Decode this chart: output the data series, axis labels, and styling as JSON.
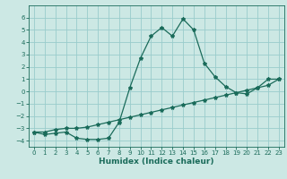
{
  "xlabel": "Humidex (Indice chaleur)",
  "bg_color": "#cce8e4",
  "grid_color": "#99cccc",
  "line_color": "#1a6b5a",
  "xlim": [
    -0.5,
    23.5
  ],
  "ylim": [
    -4.5,
    7.0
  ],
  "yticks": [
    -4,
    -3,
    -2,
    -1,
    0,
    1,
    2,
    3,
    4,
    5,
    6
  ],
  "xticks": [
    0,
    1,
    2,
    3,
    4,
    5,
    6,
    7,
    8,
    9,
    10,
    11,
    12,
    13,
    14,
    15,
    16,
    17,
    18,
    19,
    20,
    21,
    22,
    23
  ],
  "curve1_x": [
    0,
    1,
    2,
    3,
    4,
    5,
    6,
    7,
    8,
    9,
    10,
    11,
    12,
    13,
    14,
    15,
    16,
    17,
    18,
    19,
    20,
    21,
    22,
    23
  ],
  "curve1_y": [
    -3.3,
    -3.5,
    -3.4,
    -3.3,
    -3.8,
    -3.9,
    -3.9,
    -3.8,
    -2.5,
    0.3,
    2.7,
    4.5,
    5.2,
    4.5,
    5.9,
    5.0,
    2.3,
    1.2,
    0.4,
    -0.1,
    -0.2,
    0.3,
    1.0,
    1.0
  ],
  "curve2_x": [
    0,
    1,
    2,
    3,
    4,
    5,
    6,
    7,
    8,
    9,
    10,
    11,
    12,
    13,
    14,
    15,
    16,
    17,
    18,
    19,
    20,
    21,
    22,
    23
  ],
  "curve2_y": [
    -3.3,
    -3.3,
    -3.1,
    -3.0,
    -3.0,
    -2.9,
    -2.7,
    -2.5,
    -2.3,
    -2.1,
    -1.9,
    -1.7,
    -1.5,
    -1.3,
    -1.1,
    -0.9,
    -0.7,
    -0.5,
    -0.3,
    -0.1,
    0.1,
    0.3,
    0.5,
    1.0
  ],
  "xlabel_fontsize": 6.5,
  "tick_fontsize": 5.0,
  "marker_size": 3.0,
  "linewidth": 0.9
}
